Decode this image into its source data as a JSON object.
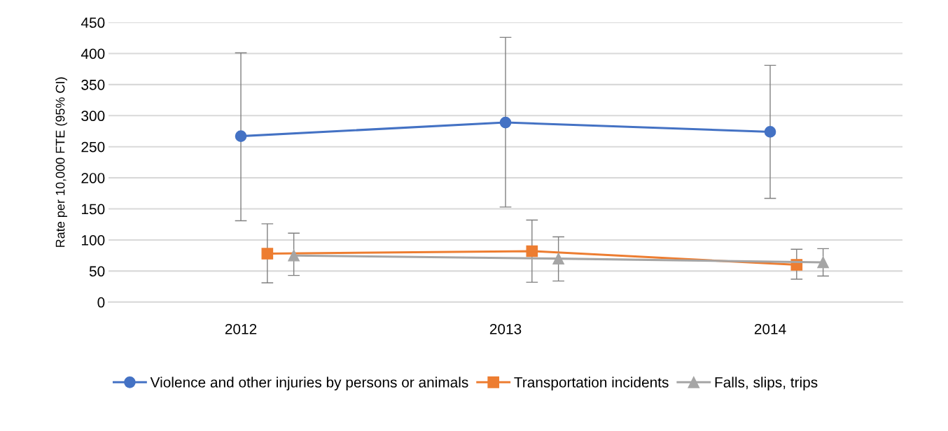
{
  "chart_data": {
    "type": "line",
    "ylabel": "Rate per 10,000 FTE (95% CI)",
    "xlim": [
      2011.5,
      2014.5
    ],
    "xticks": [
      2012,
      2013,
      2014
    ],
    "ylim": [
      0,
      450
    ],
    "yticks": [
      0,
      50,
      100,
      150,
      200,
      250,
      300,
      350,
      400,
      450
    ],
    "grid": "y",
    "legend": "bottom",
    "series": [
      {
        "name": "Violence and other injuries by persons or animals",
        "color": "#4472c4",
        "marker": "circle",
        "x": [
          2012,
          2013,
          2014
        ],
        "values": [
          267,
          289,
          274
        ],
        "errors": [
          [
            131,
            401
          ],
          [
            153,
            426
          ],
          [
            167,
            381
          ]
        ]
      },
      {
        "name": "Transportation incidents",
        "color": "#ed7d31",
        "marker": "square",
        "x": [
          2012.1,
          2013.1,
          2014.1
        ],
        "values": [
          78,
          82,
          60
        ],
        "errors": [
          [
            31,
            126
          ],
          [
            32,
            132
          ],
          [
            37,
            85
          ]
        ]
      },
      {
        "name": "Falls, slips, trips",
        "color": "#a5a5a5",
        "marker": "triangle",
        "x": [
          2012.2,
          2013.2,
          2014.2
        ],
        "values": [
          75,
          70,
          64
        ],
        "errors": [
          [
            43,
            111
          ],
          [
            34,
            105
          ],
          [
            42,
            86
          ]
        ]
      }
    ]
  }
}
